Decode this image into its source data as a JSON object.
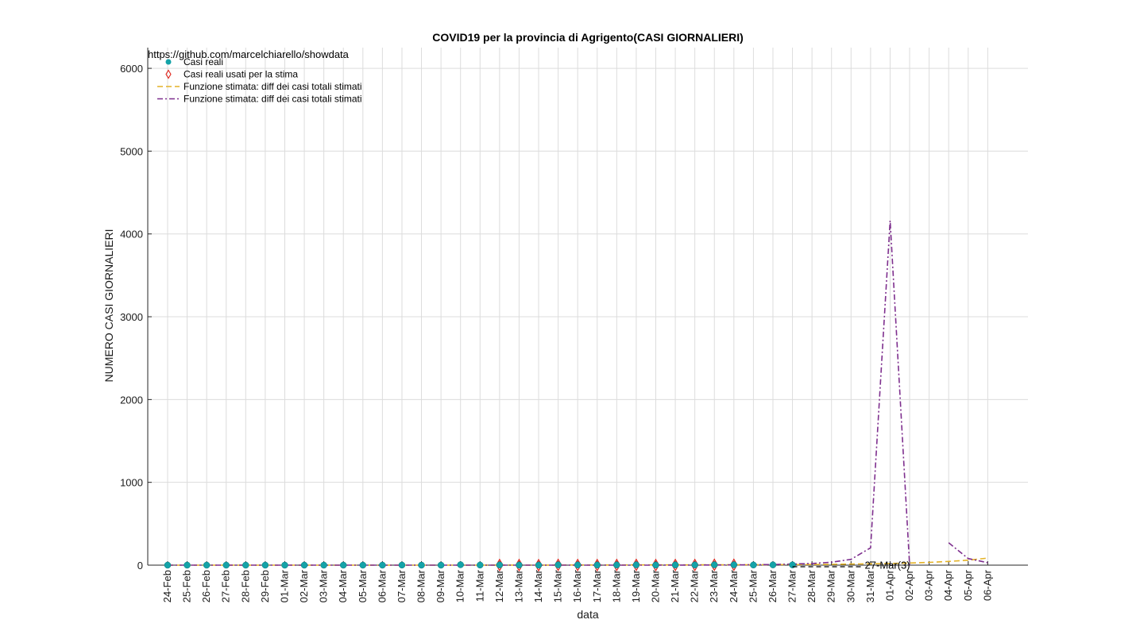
{
  "chart_data": {
    "type": "line",
    "title": "COVID19 per la provincia di Agrigento(CASI GIORNALIERI)",
    "xlabel": "data",
    "ylabel": "NUMERO CASI GIORNALIERI",
    "source_text": "https://github.com/marcelchiarello/showdata",
    "ylim": [
      0,
      6250
    ],
    "yticks": [
      0,
      1000,
      2000,
      3000,
      4000,
      5000,
      6000
    ],
    "grid": true,
    "legend_position": "top-left",
    "categories": [
      "24-Feb",
      "25-Feb",
      "26-Feb",
      "27-Feb",
      "28-Feb",
      "29-Feb",
      "01-Mar",
      "02-Mar",
      "03-Mar",
      "04-Mar",
      "05-Mar",
      "06-Mar",
      "07-Mar",
      "08-Mar",
      "09-Mar",
      "10-Mar",
      "11-Mar",
      "12-Mar",
      "13-Mar",
      "14-Mar",
      "15-Mar",
      "16-Mar",
      "17-Mar",
      "18-Mar",
      "19-Mar",
      "20-Mar",
      "21-Mar",
      "22-Mar",
      "23-Mar",
      "24-Mar",
      "25-Mar",
      "26-Mar",
      "27-Mar",
      "28-Mar",
      "29-Mar",
      "30-Mar",
      "31-Mar",
      "01-Apr",
      "02-Apr",
      "03-Apr",
      "04-Apr",
      "05-Apr",
      "06-Apr"
    ],
    "annotation": "27-Mar(3)",
    "annotation_at": {
      "x": "27-Mar",
      "y": 3
    },
    "series": [
      {
        "name": "Casi reali",
        "style": "dots",
        "color": "#14a3a8",
        "values": [
          0,
          0,
          0,
          0,
          0,
          0,
          0,
          0,
          0,
          0,
          0,
          0,
          1,
          0,
          0,
          5,
          1,
          2,
          1,
          0,
          3,
          2,
          1,
          2,
          3,
          1,
          2,
          2,
          4,
          4,
          2,
          3,
          3,
          null,
          null,
          null,
          null,
          null,
          null,
          null,
          null,
          null,
          null
        ]
      },
      {
        "name": "Casi reali usati per la stima",
        "style": "diamonds",
        "color": "#e0241b",
        "values": [
          null,
          null,
          null,
          null,
          null,
          null,
          null,
          null,
          null,
          null,
          null,
          null,
          null,
          null,
          null,
          null,
          null,
          2,
          1,
          0,
          3,
          2,
          1,
          2,
          3,
          1,
          2,
          2,
          4,
          4,
          null,
          null,
          null,
          null,
          null,
          null,
          null,
          null,
          null,
          null,
          null,
          null,
          null
        ]
      },
      {
        "name": "Funzione stimata: diff dei casi totali stimati",
        "style": "dashed",
        "color": "#e4b226",
        "values": [
          0,
          0,
          0,
          0,
          0,
          0,
          0,
          0,
          0,
          0,
          0,
          0,
          0,
          0,
          0,
          0,
          0,
          1,
          1,
          1,
          1,
          2,
          2,
          2,
          3,
          3,
          3,
          4,
          4,
          5,
          5,
          6,
          7,
          8,
          10,
          13,
          16,
          20,
          26,
          34,
          45,
          60,
          85
        ]
      },
      {
        "name": "Funzione stimata: diff dei casi totali stimati",
        "style": "dashdot",
        "color": "#7e2f8e",
        "values": [
          0,
          0,
          0,
          0,
          0,
          0,
          0,
          0,
          0,
          0,
          0,
          0,
          0,
          0,
          0,
          0,
          0,
          0,
          0,
          0,
          0,
          0,
          0,
          0,
          0,
          0,
          1,
          1,
          2,
          3,
          5,
          8,
          13,
          20,
          35,
          70,
          210,
          4160,
          0,
          null,
          270,
          80,
          30
        ]
      }
    ]
  }
}
